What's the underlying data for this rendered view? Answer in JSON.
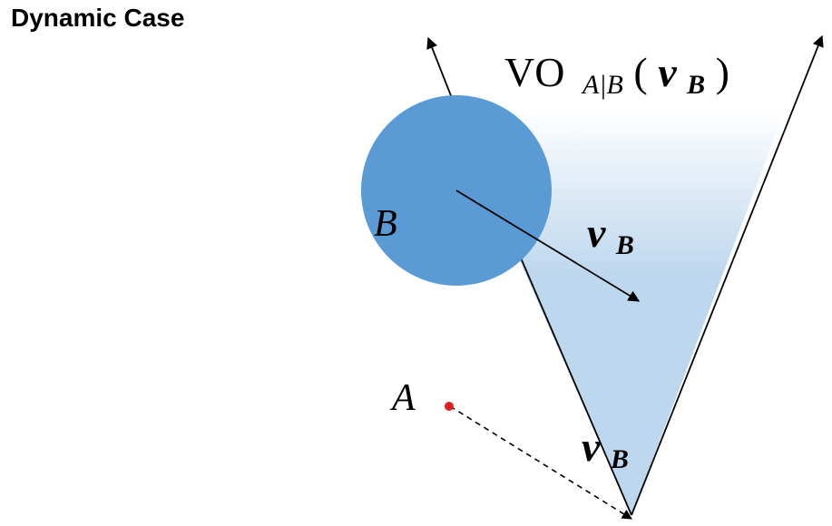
{
  "title": "Dynamic Case",
  "labels": {
    "vo_main": "VO",
    "vo_subscript": "A|B",
    "vo_paren_open": "(",
    "vo_arg_v": "v",
    "vo_arg_sub": "B",
    "vo_paren_close": ")",
    "obstacle": "B",
    "agent": "A",
    "velocity_v": "v",
    "velocity_sub": "B"
  },
  "colors": {
    "obstacle_fill": "#5b9bd5",
    "cone_fill": "#bdd7ee",
    "agent_dot": "#e02020",
    "lines": "#000000"
  }
}
